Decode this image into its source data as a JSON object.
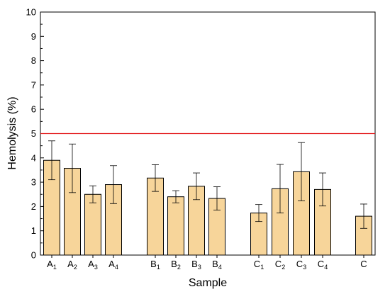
{
  "chart_data": {
    "type": "bar",
    "xlabel": "Sample",
    "ylabel": "Hemolysis (%)",
    "ylim": [
      0,
      10
    ],
    "yticks": [
      0,
      1,
      2,
      3,
      4,
      5,
      6,
      7,
      8,
      9,
      10
    ],
    "threshold": {
      "value": 5,
      "color": "#e31a1c"
    },
    "bar_color": "#f7d59a",
    "grid": false,
    "bars": [
      {
        "base": "A",
        "sub": "1",
        "value": 3.9,
        "err": 0.8
      },
      {
        "base": "A",
        "sub": "2",
        "value": 3.57,
        "err": 1.0
      },
      {
        "base": "A",
        "sub": "3",
        "value": 2.5,
        "err": 0.35
      },
      {
        "base": "A",
        "sub": "4",
        "value": 2.9,
        "err": 0.78
      },
      {
        "base": "B",
        "sub": "1",
        "value": 3.17,
        "err": 0.55
      },
      {
        "base": "B",
        "sub": "2",
        "value": 2.4,
        "err": 0.25
      },
      {
        "base": "B",
        "sub": "3",
        "value": 2.83,
        "err": 0.55
      },
      {
        "base": "B",
        "sub": "4",
        "value": 2.33,
        "err": 0.48
      },
      {
        "base": "C",
        "sub": "1",
        "value": 1.73,
        "err": 0.35
      },
      {
        "base": "C",
        "sub": "2",
        "value": 2.73,
        "err": 1.0
      },
      {
        "base": "C",
        "sub": "3",
        "value": 3.43,
        "err": 1.2
      },
      {
        "base": "C",
        "sub": "4",
        "value": 2.7,
        "err": 0.68
      },
      {
        "base": "C",
        "sub": "",
        "value": 1.6,
        "err": 0.5
      }
    ]
  }
}
